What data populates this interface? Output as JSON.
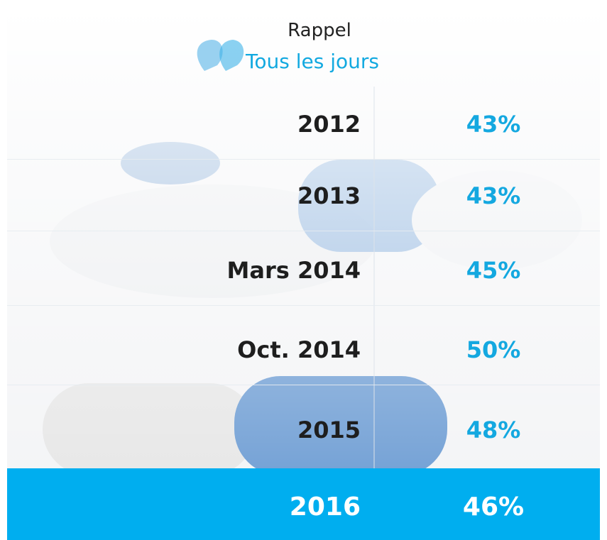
{
  "header": {
    "title": "Rappel",
    "subtitle": "Tous les jours"
  },
  "table": {
    "rows": [
      [
        "2012",
        "43%"
      ],
      [
        "2013",
        "43%"
      ],
      [
        "Mars 2014",
        "45%"
      ],
      [
        "Oct. 2014",
        "50%"
      ],
      [
        "2015",
        "48%"
      ]
    ],
    "highlight": [
      "2016",
      "46%"
    ]
  }
}
